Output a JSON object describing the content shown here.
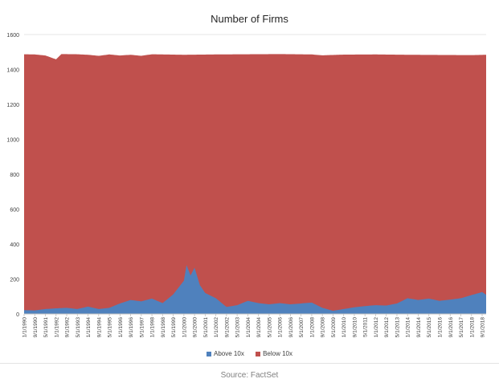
{
  "chart_data": {
    "type": "area",
    "stacked": true,
    "title": "Number of Firms",
    "xlabel": "",
    "ylabel": "",
    "ylim": [
      0,
      1600
    ],
    "yticks": [
      0,
      200,
      400,
      600,
      800,
      1000,
      1200,
      1400,
      1600
    ],
    "grid": true,
    "legend_position": "bottom",
    "x_start": "1990-01",
    "x_end": "2018-12",
    "x_tick_labels": [
      "1/1/1990",
      "9/1/1990",
      "5/1/1991",
      "1/1/1992",
      "9/1/1992",
      "5/1/1993",
      "1/1/1994",
      "9/1/1994",
      "5/1/1995",
      "1/1/1996",
      "9/1/1996",
      "5/1/1997",
      "1/1/1998",
      "9/1/1998",
      "5/1/1999",
      "1/1/2000",
      "9/1/2000",
      "5/1/2001",
      "1/1/2002",
      "9/1/2002",
      "5/1/2003",
      "1/1/2004",
      "9/1/2004",
      "5/1/2005",
      "1/1/2006",
      "9/1/2006",
      "5/1/2007",
      "1/1/2008",
      "9/1/2008",
      "5/1/2009",
      "1/1/2010",
      "9/1/2010",
      "5/1/2011",
      "1/1/2012",
      "9/1/2012",
      "5/1/2013",
      "1/1/2014",
      "9/1/2014",
      "5/1/2015",
      "1/1/2016",
      "9/1/2016",
      "5/1/2017",
      "1/1/2018",
      "9/1/2018"
    ],
    "series": [
      {
        "name": "Above 10x",
        "color": "#4f81bd",
        "points": [
          [
            "1/1/1990",
            22
          ],
          [
            "9/1/1990",
            20
          ],
          [
            "5/1/1991",
            28
          ],
          [
            "1/1/1992",
            32
          ],
          [
            "9/1/1992",
            35
          ],
          [
            "5/1/1993",
            28
          ],
          [
            "1/1/1994",
            42
          ],
          [
            "9/1/1994",
            28
          ],
          [
            "5/1/1995",
            35
          ],
          [
            "1/1/1996",
            60
          ],
          [
            "9/1/1996",
            80
          ],
          [
            "5/1/1997",
            72
          ],
          [
            "1/1/1998",
            88
          ],
          [
            "9/1/1998",
            62
          ],
          [
            "5/1/1999",
            112
          ],
          [
            "1/1/2000",
            190
          ],
          [
            "3/1/2000",
            280
          ],
          [
            "6/1/2000",
            220
          ],
          [
            "9/1/2000",
            265
          ],
          [
            "1/1/2001",
            165
          ],
          [
            "5/1/2001",
            120
          ],
          [
            "1/1/2002",
            90
          ],
          [
            "9/1/2002",
            40
          ],
          [
            "5/1/2003",
            50
          ],
          [
            "1/1/2004",
            75
          ],
          [
            "9/1/2004",
            62
          ],
          [
            "5/1/2005",
            55
          ],
          [
            "1/1/2006",
            62
          ],
          [
            "9/1/2006",
            55
          ],
          [
            "5/1/2007",
            60
          ],
          [
            "1/1/2008",
            65
          ],
          [
            "9/1/2008",
            35
          ],
          [
            "5/1/2009",
            18
          ],
          [
            "1/1/2010",
            28
          ],
          [
            "9/1/2010",
            38
          ],
          [
            "5/1/2011",
            45
          ],
          [
            "1/1/2012",
            50
          ],
          [
            "9/1/2012",
            48
          ],
          [
            "5/1/2013",
            60
          ],
          [
            "1/1/2014",
            90
          ],
          [
            "9/1/2014",
            80
          ],
          [
            "5/1/2015",
            88
          ],
          [
            "1/1/2016",
            75
          ],
          [
            "9/1/2016",
            82
          ],
          [
            "5/1/2017",
            90
          ],
          [
            "1/1/2018",
            108
          ],
          [
            "9/1/2018",
            125
          ],
          [
            "12/1/2018",
            110
          ]
        ]
      },
      {
        "name": "Below 10x",
        "color": "#c0504d",
        "total_points": [
          [
            "1/1/1990",
            1487
          ],
          [
            "9/1/1990",
            1486
          ],
          [
            "5/1/1991",
            1480
          ],
          [
            "1/1/1992",
            1458
          ],
          [
            "5/1/1992",
            1488
          ],
          [
            "5/1/1993",
            1487
          ],
          [
            "1/1/1994",
            1484
          ],
          [
            "9/1/1994",
            1478
          ],
          [
            "5/1/1995",
            1486
          ],
          [
            "1/1/1996",
            1480
          ],
          [
            "9/1/1996",
            1484
          ],
          [
            "5/1/1997",
            1478
          ],
          [
            "1/1/1998",
            1487
          ],
          [
            "5/1/1999",
            1485
          ],
          [
            "1/1/2000",
            1484
          ],
          [
            "1/1/2002",
            1486
          ],
          [
            "1/1/2004",
            1487
          ],
          [
            "1/1/2006",
            1488
          ],
          [
            "1/1/2008",
            1486
          ],
          [
            "9/1/2008",
            1481
          ],
          [
            "1/1/2010",
            1485
          ],
          [
            "1/1/2012",
            1486
          ],
          [
            "1/1/2014",
            1484
          ],
          [
            "1/1/2016",
            1483
          ],
          [
            "1/1/2018",
            1482
          ],
          [
            "12/1/2018",
            1484
          ]
        ]
      }
    ]
  },
  "footer": {
    "source": "Source: FactSet"
  }
}
